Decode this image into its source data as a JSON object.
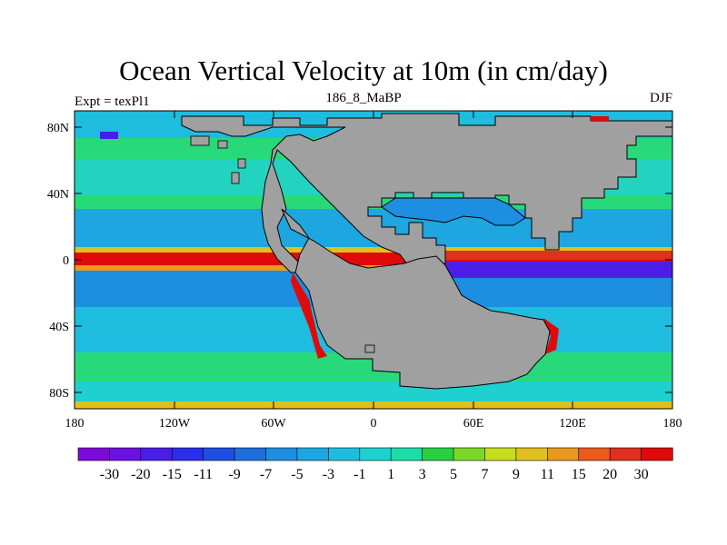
{
  "title": "Ocean Vertical Velocity at 10m (in cm/day)",
  "left_string": "Expt = texPl1",
  "center_string": "186_8_MaBP",
  "right_string": "DJF",
  "lat_labels": [
    "80N",
    "40N",
    "0",
    "40S",
    "80S"
  ],
  "lon_labels": [
    "180",
    "120W",
    "60W",
    "0",
    "60E",
    "120E",
    "180"
  ],
  "colorbar": {
    "labels": [
      "-30",
      "-20",
      "-15",
      "-11",
      "-9",
      "-7",
      "-5",
      "-3",
      "-1",
      "1",
      "3",
      "5",
      "7",
      "9",
      "11",
      "15",
      "20",
      "30"
    ],
    "colors": [
      "#7d0ad6",
      "#6b12e0",
      "#4a1ee6",
      "#2b2ee8",
      "#1f4ee0",
      "#1e6fdc",
      "#1e8ee0",
      "#1ea6e0",
      "#1ebde0",
      "#1ed0d0",
      "#1edca8",
      "#28d040",
      "#7cd828",
      "#c6dc1e",
      "#e0c01e",
      "#e89a1e",
      "#e85a1e",
      "#e0301e",
      "#e00a0a"
    ]
  },
  "colors": {
    "land": "#a0a0a0",
    "background_ocean": "#28d97a"
  }
}
